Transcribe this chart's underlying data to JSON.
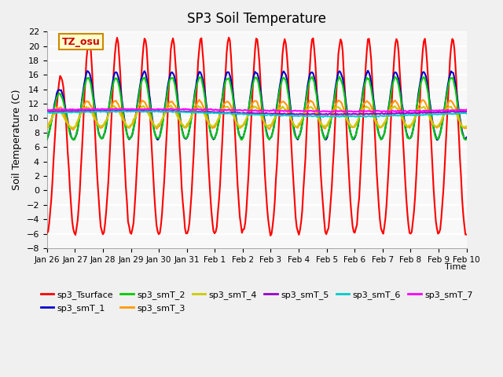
{
  "title": "SP3 Soil Temperature",
  "ylabel": "Soil Temperature (C)",
  "xlabel": "Time",
  "annotation": "TZ_osu",
  "annotation_color": "#cc0000",
  "annotation_bg": "#ffffcc",
  "annotation_border": "#cc8800",
  "ylim": [
    -8,
    22
  ],
  "yticks": [
    -8,
    -6,
    -4,
    -2,
    0,
    2,
    4,
    6,
    8,
    10,
    12,
    14,
    16,
    18,
    20,
    22
  ],
  "xtick_labels": [
    "Jan 26",
    "Jan 27",
    "Jan 28",
    "Jan 29",
    "Jan 30",
    "Jan 31",
    "Feb 1",
    "Feb 2",
    "Feb 3",
    "Feb 4",
    "Feb 5",
    "Feb 6",
    "Feb 7",
    "Feb 8",
    "Feb 9",
    "Feb 10"
  ],
  "series_labels": [
    "sp3_Tsurface",
    "sp3_smT_1",
    "sp3_smT_2",
    "sp3_smT_3",
    "sp3_smT_4",
    "sp3_smT_5",
    "sp3_smT_6",
    "sp3_smT_7"
  ],
  "series_colors": [
    "#ff0000",
    "#0000cc",
    "#00cc00",
    "#ff9900",
    "#cccc00",
    "#9900cc",
    "#00cccc",
    "#ff00ff"
  ],
  "line_widths": [
    1.5,
    1.5,
    1.5,
    1.5,
    1.5,
    1.5,
    1.5,
    1.5
  ],
  "bg_color": "#f0f0f0",
  "plot_bg": "#f8f8f8",
  "grid_color": "#ffffff",
  "n_points": 384
}
